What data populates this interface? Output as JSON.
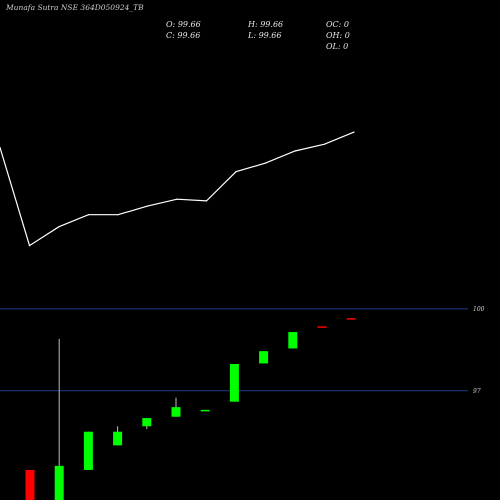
{
  "header": {
    "title": "Munafa Sutra NSE 364D050924_TB",
    "stats": [
      {
        "label": "O:",
        "value": "99.66"
      },
      {
        "label": "H:",
        "value": "99.66"
      },
      {
        "label": "OC:",
        "value": "0"
      },
      {
        "label": "C:",
        "value": "99.66"
      },
      {
        "label": "L:",
        "value": "99.66"
      },
      {
        "label": "OH:",
        "value": "0"
      },
      {
        "label": "OL:",
        "value": "0"
      }
    ]
  },
  "colors": {
    "background": "#000000",
    "line": "#ffffff",
    "up": "#00ff00",
    "down": "#ff0000",
    "reference_line": "#1f3a8a"
  },
  "chart_data": [
    {
      "type": "line",
      "title": "",
      "series": [
        {
          "values": [
            99.0,
            93.3,
            94.4,
            95.1,
            95.1,
            95.6,
            96.0,
            95.9,
            97.6,
            98.1,
            98.8,
            99.2,
            99.9
          ]
        }
      ],
      "ylim": [
        92,
        102
      ],
      "grid": false
    },
    {
      "type": "candlestick",
      "title": "",
      "reference_lines": [
        {
          "label": "100",
          "value": 100
        },
        {
          "label": "97",
          "value": 97
        }
      ],
      "ylim": [
        93.0,
        100.8
      ],
      "grid": false,
      "candles": [
        {
          "open": 94.1,
          "high": 94.1,
          "low": 93.0,
          "close": 93.0,
          "dir": "down"
        },
        {
          "open": 93.0,
          "high": 98.9,
          "low": 93.0,
          "close": 94.25,
          "dir": "up"
        },
        {
          "open": 94.1,
          "high": 95.5,
          "low": 94.1,
          "close": 95.5,
          "dir": "up"
        },
        {
          "open": 95.0,
          "high": 95.7,
          "low": 95.0,
          "close": 95.5,
          "dir": "up"
        },
        {
          "open": 95.7,
          "high": 96.0,
          "low": 95.6,
          "close": 96.0,
          "dir": "up"
        },
        {
          "open": 96.05,
          "high": 96.75,
          "low": 96.05,
          "close": 96.4,
          "dir": "up"
        },
        {
          "open": 96.3,
          "high": 96.3,
          "low": 96.3,
          "close": 96.3,
          "dir": "up"
        },
        {
          "open": 96.6,
          "high": 97.98,
          "low": 96.6,
          "close": 97.98,
          "dir": "up"
        },
        {
          "open": 98.0,
          "high": 98.45,
          "low": 98.0,
          "close": 98.45,
          "dir": "up"
        },
        {
          "open": 98.55,
          "high": 99.15,
          "low": 98.55,
          "close": 99.15,
          "dir": "up"
        },
        {
          "open": 99.36,
          "high": 99.36,
          "low": 99.36,
          "close": 99.36,
          "dir": "down"
        },
        {
          "open": 99.66,
          "high": 99.66,
          "low": 99.66,
          "close": 99.66,
          "dir": "down"
        }
      ]
    }
  ]
}
